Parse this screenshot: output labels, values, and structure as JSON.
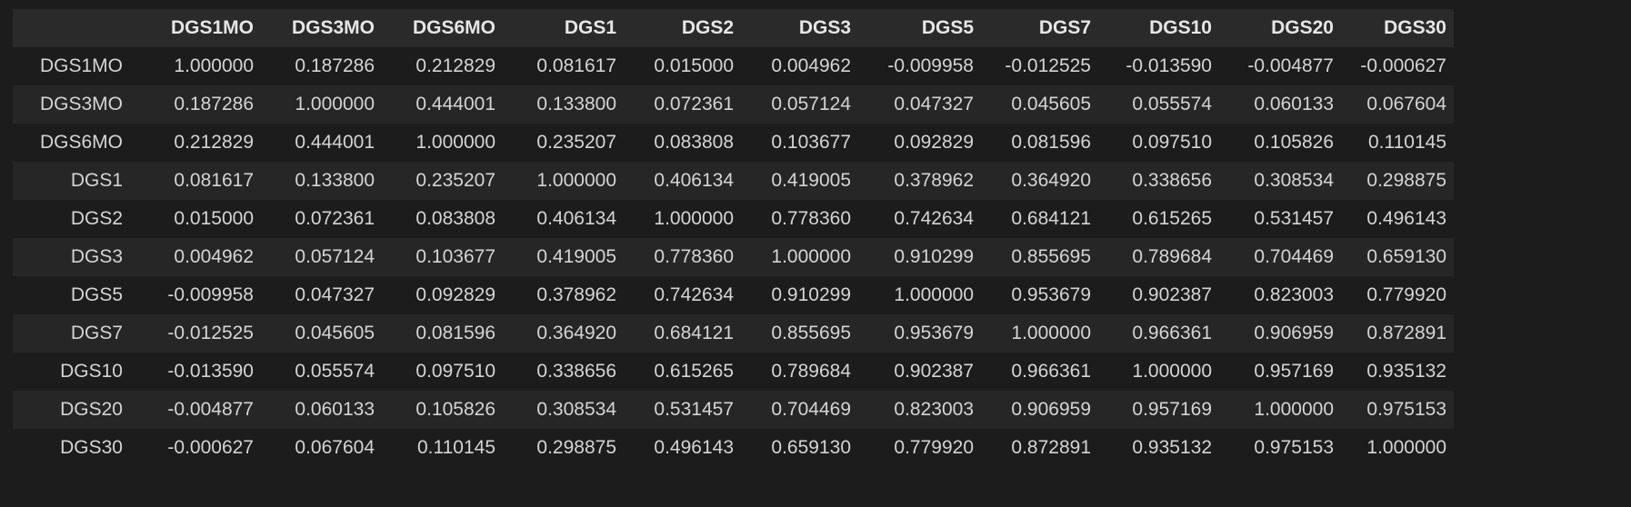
{
  "table": {
    "index_header": "",
    "columns": [
      "DGS1MO",
      "DGS3MO",
      "DGS6MO",
      "DGS1",
      "DGS2",
      "DGS3",
      "DGS5",
      "DGS7",
      "DGS10",
      "DGS20",
      "DGS30"
    ],
    "rows": [
      {
        "label": "DGS1MO",
        "values": [
          "1.000000",
          "0.187286",
          "0.212829",
          "0.081617",
          "0.015000",
          "0.004962",
          "-0.009958",
          "-0.012525",
          "-0.013590",
          "-0.004877",
          "-0.000627"
        ]
      },
      {
        "label": "DGS3MO",
        "values": [
          "0.187286",
          "1.000000",
          "0.444001",
          "0.133800",
          "0.072361",
          "0.057124",
          "0.047327",
          "0.045605",
          "0.055574",
          "0.060133",
          "0.067604"
        ]
      },
      {
        "label": "DGS6MO",
        "values": [
          "0.212829",
          "0.444001",
          "1.000000",
          "0.235207",
          "0.083808",
          "0.103677",
          "0.092829",
          "0.081596",
          "0.097510",
          "0.105826",
          "0.110145"
        ]
      },
      {
        "label": "DGS1",
        "values": [
          "0.081617",
          "0.133800",
          "0.235207",
          "1.000000",
          "0.406134",
          "0.419005",
          "0.378962",
          "0.364920",
          "0.338656",
          "0.308534",
          "0.298875"
        ]
      },
      {
        "label": "DGS2",
        "values": [
          "0.015000",
          "0.072361",
          "0.083808",
          "0.406134",
          "1.000000",
          "0.778360",
          "0.742634",
          "0.684121",
          "0.615265",
          "0.531457",
          "0.496143"
        ]
      },
      {
        "label": "DGS3",
        "values": [
          "0.004962",
          "0.057124",
          "0.103677",
          "0.419005",
          "0.778360",
          "1.000000",
          "0.910299",
          "0.855695",
          "0.789684",
          "0.704469",
          "0.659130"
        ]
      },
      {
        "label": "DGS5",
        "values": [
          "-0.009958",
          "0.047327",
          "0.092829",
          "0.378962",
          "0.742634",
          "0.910299",
          "1.000000",
          "0.953679",
          "0.902387",
          "0.823003",
          "0.779920"
        ]
      },
      {
        "label": "DGS7",
        "values": [
          "-0.012525",
          "0.045605",
          "0.081596",
          "0.364920",
          "0.684121",
          "0.855695",
          "0.953679",
          "1.000000",
          "0.966361",
          "0.906959",
          "0.872891"
        ]
      },
      {
        "label": "DGS10",
        "values": [
          "-0.013590",
          "0.055574",
          "0.097510",
          "0.338656",
          "0.615265",
          "0.789684",
          "0.902387",
          "0.966361",
          "1.000000",
          "0.957169",
          "0.935132"
        ]
      },
      {
        "label": "DGS20",
        "values": [
          "-0.004877",
          "0.060133",
          "0.105826",
          "0.308534",
          "0.531457",
          "0.704469",
          "0.823003",
          "0.906959",
          "0.957169",
          "1.000000",
          "0.975153"
        ]
      },
      {
        "label": "DGS30",
        "values": [
          "-0.000627",
          "0.067604",
          "0.110145",
          "0.298875",
          "0.496143",
          "0.659130",
          "0.779920",
          "0.872891",
          "0.935132",
          "0.975153",
          "1.000000"
        ]
      }
    ]
  },
  "colors": {
    "background": "#1c1c1c",
    "header_background": "#2a2a2a",
    "row_stripe": "#262626",
    "text": "#d4d4d4"
  }
}
